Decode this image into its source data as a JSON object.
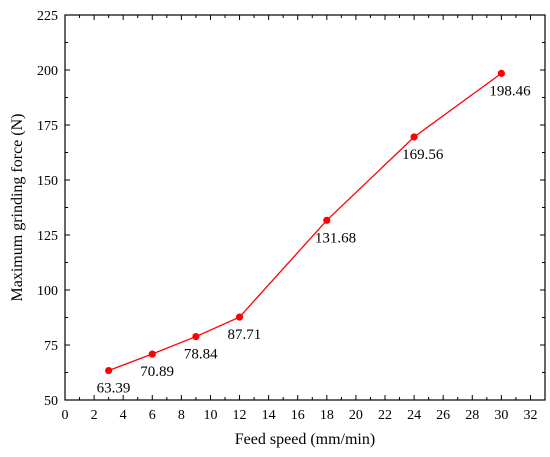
{
  "chart_data": {
    "type": "line",
    "xlabel": "Feed speed  (mm/min)",
    "ylabel": "Maximum grinding force (N)",
    "xlim": [
      0,
      33
    ],
    "ylim": [
      50,
      225
    ],
    "x_ticks": [
      0,
      2,
      4,
      6,
      8,
      10,
      12,
      14,
      16,
      18,
      20,
      22,
      24,
      26,
      28,
      30,
      32
    ],
    "y_ticks": [
      50,
      75,
      100,
      125,
      150,
      175,
      200,
      225
    ],
    "grid": false,
    "legend": "none",
    "series": [
      {
        "color": "#ff0000",
        "marker": "circle",
        "x": [
          3,
          6,
          9,
          12,
          18,
          24,
          30
        ],
        "y": [
          63.39,
          70.89,
          78.84,
          87.71,
          131.68,
          169.56,
          198.46
        ],
        "data_labels": [
          "63.39",
          "70.89",
          "78.84",
          "87.71",
          "131.68",
          "169.56",
          "198.46"
        ]
      }
    ]
  }
}
